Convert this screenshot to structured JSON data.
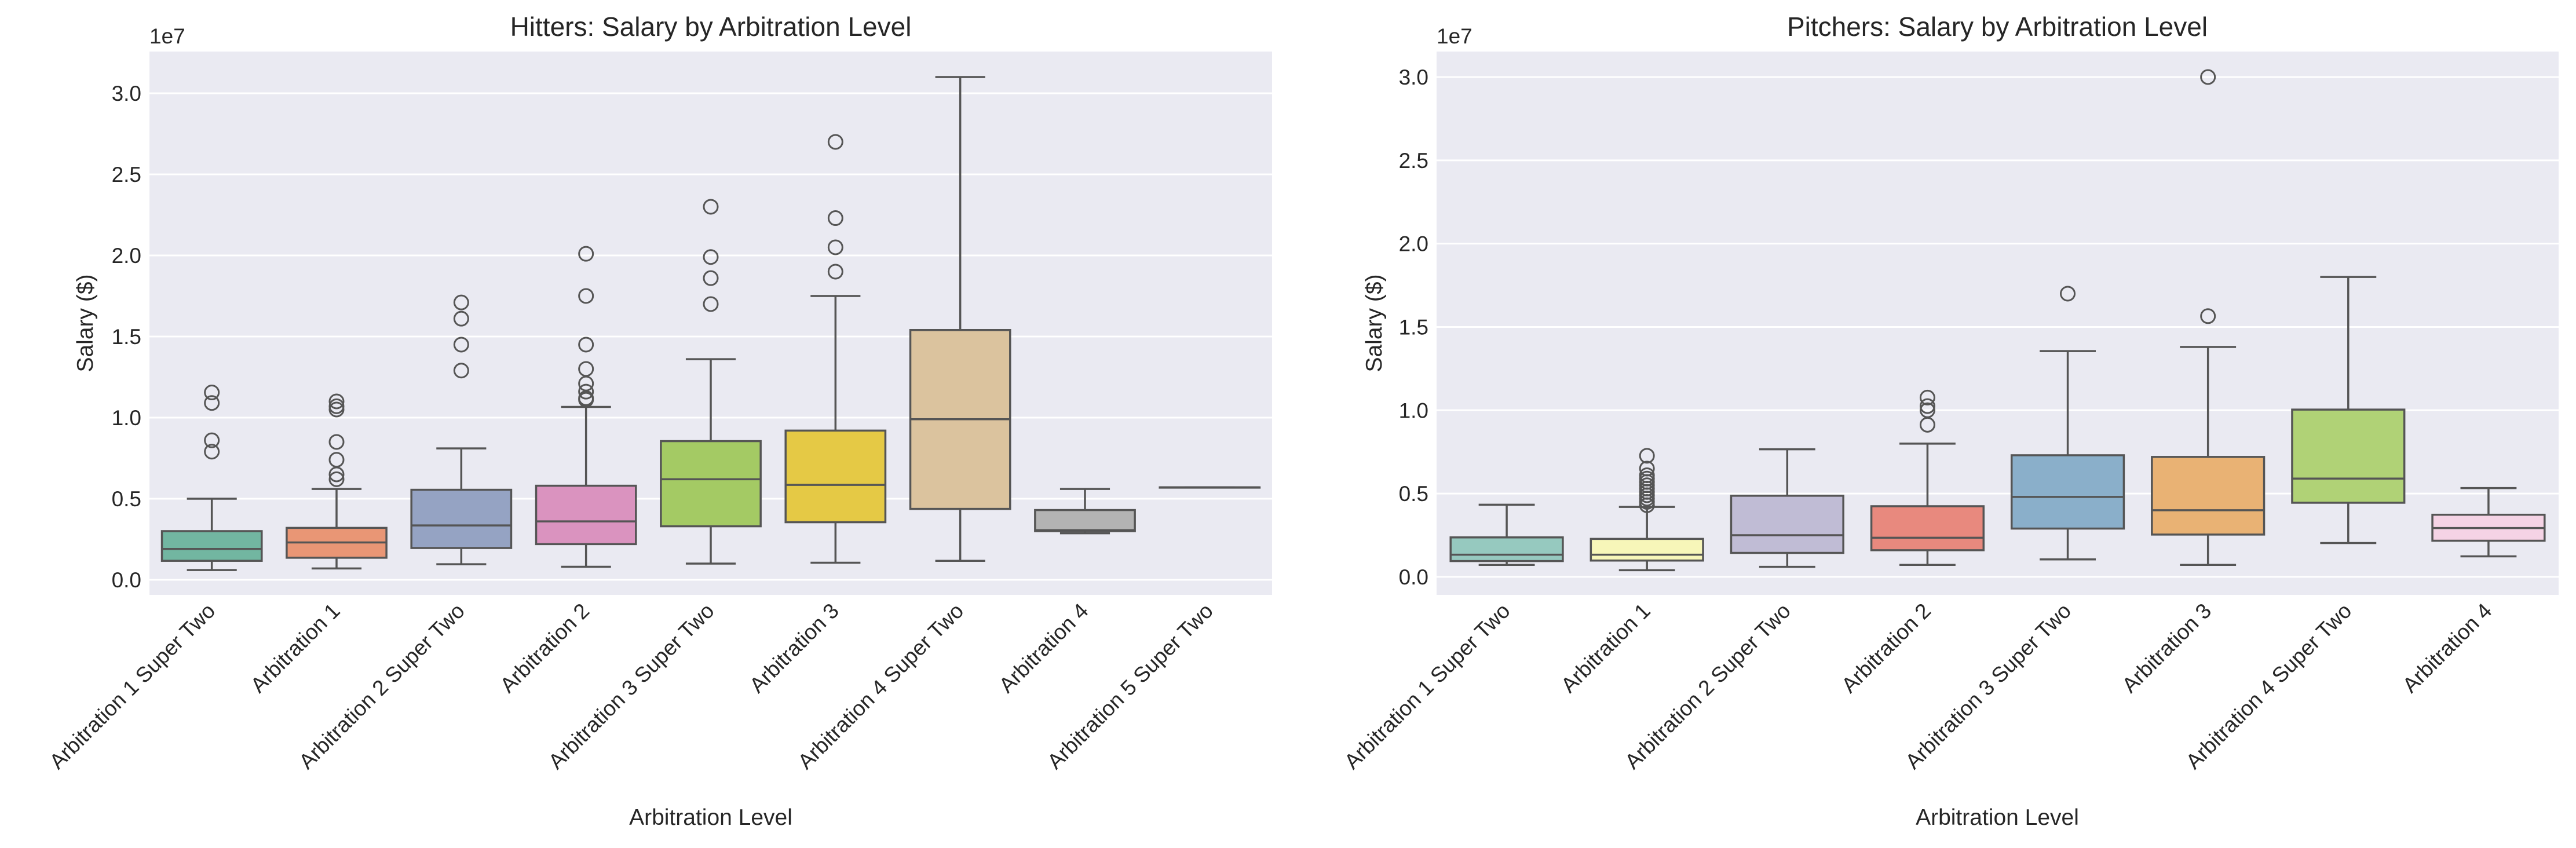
{
  "chart_data": [
    {
      "type": "box",
      "title": "Hitters: Salary by Arbitration Level",
      "xlabel": "Arbitration Level",
      "ylabel": "Salary ($)",
      "y_offset_label": "1e7",
      "ylim": [
        -0.093,
        3.257
      ],
      "yticks": [
        0.0,
        0.5,
        1.0,
        1.5,
        2.0,
        2.5,
        3.0
      ],
      "ytick_labels": [
        "0.0",
        "0.5",
        "1.0",
        "1.5",
        "2.0",
        "2.5",
        "3.0"
      ],
      "grid": true,
      "background": "#eaeaf2",
      "categories": [
        "Arbitration 1 Super Two",
        "Arbitration 1",
        "Arbitration 2 Super Two",
        "Arbitration 2",
        "Arbitration 3 Super Two",
        "Arbitration 3",
        "Arbitration 4 Super Two",
        "Arbitration 4",
        "Arbitration 5 Super Two"
      ],
      "colors": [
        "#72b6a1",
        "#e99675",
        "#95a3c3",
        "#da93bf",
        "#a4ca64",
        "#e5c945",
        "#dbc39e",
        "#b3b3b3",
        "#b3b3b3"
      ],
      "boxes": [
        {
          "whislo": 0.06,
          "q1": 0.117,
          "med": 0.19,
          "q3": 0.3,
          "whishi": 0.5,
          "fliers": [
            1.155,
            1.09,
            0.86,
            0.79
          ]
        },
        {
          "whislo": 0.07,
          "q1": 0.136,
          "med": 0.23,
          "q3": 0.32,
          "whishi": 0.56,
          "fliers": [
            1.1,
            1.07,
            1.05,
            0.85,
            0.74,
            0.65,
            0.62
          ]
        },
        {
          "whislo": 0.096,
          "q1": 0.196,
          "med": 0.335,
          "q3": 0.555,
          "whishi": 0.81,
          "fliers": [
            1.71,
            1.61,
            1.45,
            1.29
          ]
        },
        {
          "whislo": 0.08,
          "q1": 0.22,
          "med": 0.36,
          "q3": 0.58,
          "whishi": 1.066,
          "fliers": [
            2.01,
            1.75,
            1.45,
            1.3,
            1.21,
            1.16,
            1.12,
            1.11
          ]
        },
        {
          "whislo": 0.1,
          "q1": 0.33,
          "med": 0.62,
          "q3": 0.855,
          "whishi": 1.36,
          "fliers": [
            2.3,
            1.99,
            1.86,
            1.7
          ]
        },
        {
          "whislo": 0.105,
          "q1": 0.355,
          "med": 0.585,
          "q3": 0.92,
          "whishi": 1.75,
          "fliers": [
            2.7,
            2.23,
            2.05,
            1.9
          ]
        },
        {
          "whislo": 0.117,
          "q1": 0.437,
          "med": 0.99,
          "q3": 1.54,
          "whishi": 3.1,
          "fliers": []
        },
        {
          "whislo": 0.287,
          "q1": 0.3,
          "med": 0.306,
          "q3": 0.43,
          "whishi": 0.56,
          "fliers": []
        },
        {
          "whislo": 0.57,
          "q1": 0.57,
          "med": 0.57,
          "q3": 0.57,
          "whishi": 0.57,
          "fliers": []
        }
      ]
    },
    {
      "type": "box",
      "title": "Pitchers: Salary by Arbitration Level",
      "xlabel": "Arbitration Level",
      "ylabel": "Salary ($)",
      "y_offset_label": "1e7",
      "ylim": [
        -0.108,
        3.153
      ],
      "yticks": [
        0.0,
        0.5,
        1.0,
        1.5,
        2.0,
        2.5,
        3.0
      ],
      "ytick_labels": [
        "0.0",
        "0.5",
        "1.0",
        "1.5",
        "2.0",
        "2.5",
        "3.0"
      ],
      "grid": true,
      "background": "#eaeaf2",
      "categories": [
        "Arbitration 1 Super Two",
        "Arbitration 1",
        "Arbitration 2 Super Two",
        "Arbitration 2",
        "Arbitration 3 Super Two",
        "Arbitration 3",
        "Arbitration 4 Super Two",
        "Arbitration 4"
      ],
      "colors": [
        "#96c9bf",
        "#f7f6b9",
        "#c0bcd5",
        "#e8897e",
        "#8aafca",
        "#e9b274",
        "#b0d276",
        "#f5d3e5"
      ],
      "boxes": [
        {
          "whislo": 0.072,
          "q1": 0.095,
          "med": 0.133,
          "q3": 0.237,
          "whishi": 0.433,
          "fliers": []
        },
        {
          "whislo": 0.04,
          "q1": 0.098,
          "med": 0.133,
          "q3": 0.228,
          "whishi": 0.42,
          "fliers": [
            0.727,
            0.65,
            0.61,
            0.59,
            0.57,
            0.55,
            0.53,
            0.51,
            0.49,
            0.47,
            0.45,
            0.43
          ]
        },
        {
          "whislo": 0.06,
          "q1": 0.144,
          "med": 0.25,
          "q3": 0.487,
          "whishi": 0.766,
          "fliers": []
        },
        {
          "whislo": 0.072,
          "q1": 0.16,
          "med": 0.235,
          "q3": 0.424,
          "whishi": 0.8,
          "fliers": [
            1.076,
            1.025,
            1.0,
            0.913
          ]
        },
        {
          "whislo": 0.105,
          "q1": 0.29,
          "med": 0.48,
          "q3": 0.73,
          "whishi": 1.355,
          "fliers": [
            1.7
          ]
        },
        {
          "whislo": 0.072,
          "q1": 0.254,
          "med": 0.4,
          "q3": 0.72,
          "whishi": 1.38,
          "fliers": [
            1.565,
            3.0
          ]
        },
        {
          "whislo": 0.203,
          "q1": 0.445,
          "med": 0.59,
          "q3": 1.004,
          "whishi": 1.8,
          "fliers": []
        },
        {
          "whislo": 0.123,
          "q1": 0.217,
          "med": 0.293,
          "q3": 0.373,
          "whishi": 0.533,
          "fliers": []
        }
      ]
    }
  ]
}
